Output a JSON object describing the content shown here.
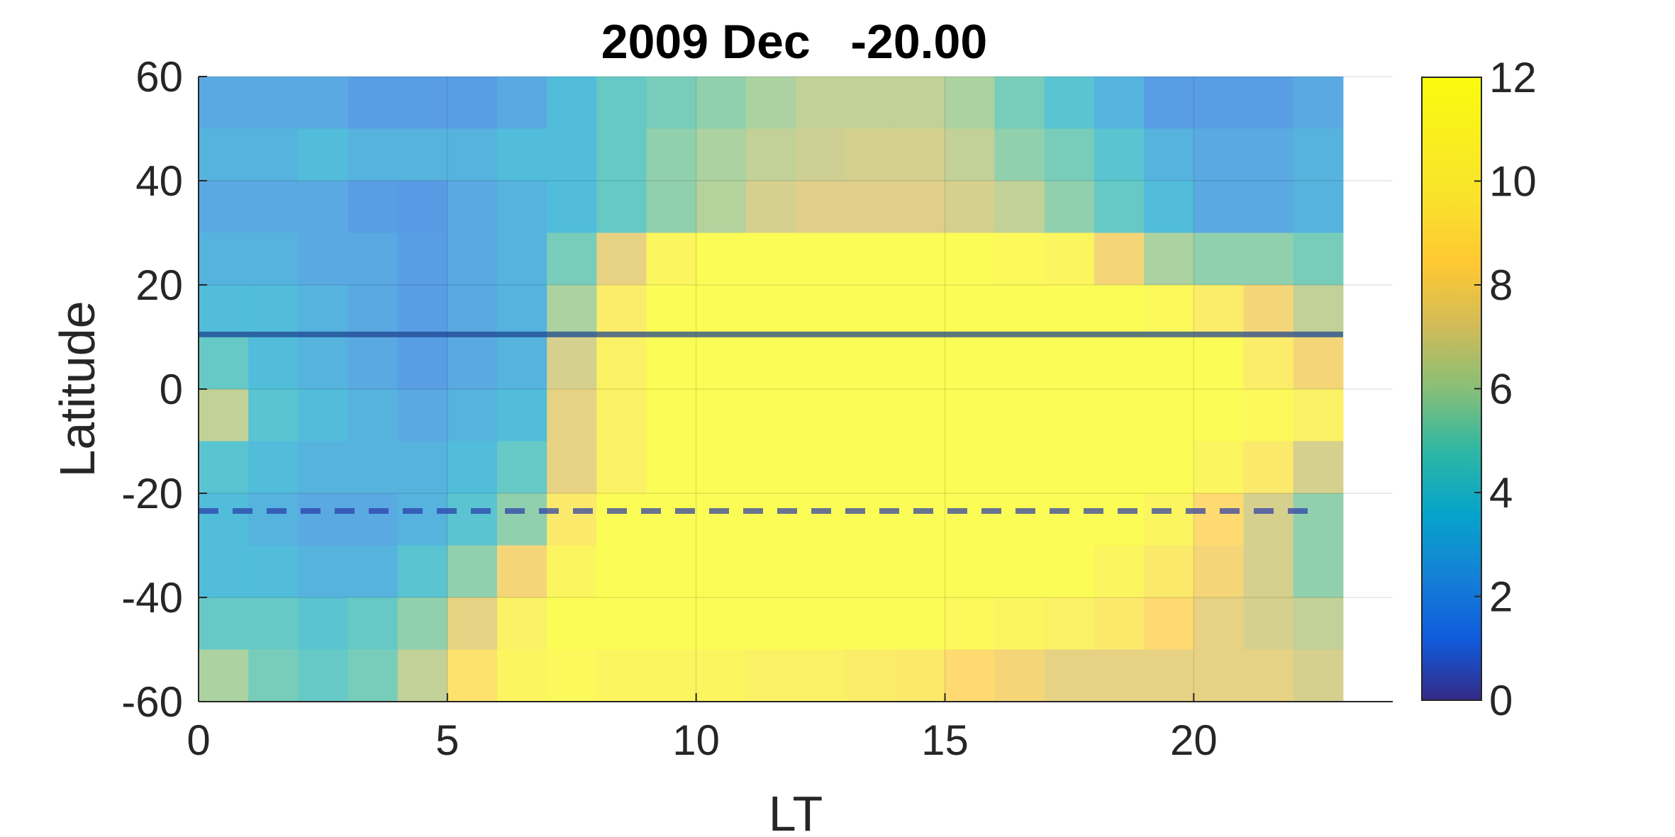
{
  "chart_data": {
    "type": "heatmap",
    "title": "2009 Dec   -20.00",
    "xlabel": "LT",
    "ylabel": "Latitude",
    "xlim": [
      0,
      24
    ],
    "ylim": [
      -60,
      60
    ],
    "x_cells": [
      0,
      23
    ],
    "x_ticks": [
      "0",
      "5",
      "10",
      "15",
      "20"
    ],
    "x_tick_values": [
      0,
      5,
      10,
      15,
      20
    ],
    "y_ticks": [
      "60",
      "40",
      "20",
      "0",
      "-20",
      "-40",
      "-60"
    ],
    "y_tick_values": [
      60,
      40,
      20,
      0,
      -20,
      -40,
      -60
    ],
    "colorbar": {
      "limits": [
        0,
        12
      ],
      "ticks": [
        "12",
        "10",
        "8",
        "6",
        "4",
        "2",
        "0"
      ],
      "tick_values": [
        12,
        10,
        8,
        6,
        4,
        2,
        0
      ],
      "colormap": "parula"
    },
    "grid": true,
    "reference_lines": [
      {
        "latitude": 10.5,
        "style": "solid",
        "color": "#1b3f8c"
      },
      {
        "latitude": -23.4,
        "style": "dashed",
        "color": "#2a3aa8"
      }
    ],
    "lt_bins": [
      0,
      1,
      2,
      3,
      4,
      5,
      6,
      7,
      8,
      9,
      10,
      11,
      12,
      13,
      14,
      15,
      16,
      17,
      18,
      19,
      20,
      21,
      22
    ],
    "lat_bins": [
      55,
      45,
      35,
      25,
      15,
      5,
      -5,
      -15,
      -25,
      -35,
      -45,
      -55
    ],
    "values": [
      [
        2.5,
        2.5,
        2.5,
        2.0,
        2.0,
        2.0,
        2.5,
        3.5,
        4.5,
        5.0,
        5.5,
        6.0,
        6.5,
        6.5,
        6.5,
        6.0,
        5.0,
        4.0,
        3.0,
        2.0,
        2.0,
        2.0,
        2.5
      ],
      [
        3.0,
        3.0,
        3.5,
        3.0,
        3.0,
        3.0,
        3.5,
        3.5,
        4.5,
        5.5,
        6.0,
        6.5,
        6.8,
        7.0,
        7.0,
        6.5,
        5.5,
        5.0,
        4.0,
        3.0,
        2.5,
        2.5,
        3.0
      ],
      [
        2.5,
        2.5,
        2.5,
        2.0,
        1.8,
        2.5,
        3.0,
        3.5,
        4.5,
        5.5,
        6.2,
        7.0,
        7.2,
        7.2,
        7.2,
        7.0,
        6.5,
        5.5,
        4.5,
        3.5,
        2.5,
        2.5,
        3.0
      ],
      [
        3.0,
        3.0,
        2.5,
        2.5,
        2.0,
        2.5,
        3.0,
        5.0,
        7.5,
        11.0,
        12.0,
        12.0,
        12.0,
        12.0,
        12.0,
        12.0,
        11.5,
        11.0,
        8.0,
        6.0,
        5.5,
        5.5,
        5.0
      ],
      [
        3.5,
        3.5,
        3.0,
        2.5,
        2.0,
        2.5,
        3.0,
        6.0,
        10.0,
        12.0,
        12.0,
        12.0,
        12.0,
        12.0,
        12.0,
        12.0,
        12.0,
        12.0,
        12.0,
        11.5,
        10.0,
        8.0,
        6.5
      ],
      [
        4.5,
        3.5,
        3.0,
        2.5,
        2.0,
        2.5,
        3.0,
        7.0,
        10.5,
        12.0,
        12.0,
        12.0,
        12.0,
        12.0,
        12.0,
        12.0,
        12.0,
        12.0,
        12.0,
        12.0,
        12.0,
        10.0,
        8.0
      ],
      [
        6.5,
        4.0,
        3.5,
        3.0,
        2.5,
        3.0,
        3.5,
        7.5,
        10.5,
        12.0,
        12.0,
        12.0,
        12.0,
        12.0,
        12.0,
        12.0,
        12.0,
        12.0,
        12.0,
        12.0,
        12.0,
        11.5,
        10.5
      ],
      [
        4.0,
        3.5,
        3.0,
        3.0,
        3.0,
        3.5,
        4.5,
        7.5,
        10.5,
        12.0,
        12.0,
        12.0,
        12.0,
        12.0,
        12.0,
        12.0,
        12.0,
        12.0,
        12.0,
        12.0,
        11.0,
        9.5,
        7.0
      ],
      [
        3.5,
        3.0,
        2.5,
        2.5,
        3.0,
        4.0,
        5.5,
        9.5,
        12.0,
        12.0,
        12.0,
        12.0,
        12.0,
        12.0,
        12.0,
        12.0,
        12.0,
        12.0,
        12.0,
        11.0,
        8.5,
        7.0,
        5.5
      ],
      [
        3.5,
        3.5,
        3.0,
        3.0,
        4.0,
        5.5,
        8.0,
        11.0,
        12.0,
        12.0,
        12.0,
        12.0,
        12.0,
        12.0,
        12.0,
        12.0,
        12.0,
        12.0,
        11.0,
        9.5,
        8.0,
        7.0,
        5.5
      ],
      [
        4.5,
        4.5,
        4.0,
        4.5,
        5.5,
        7.5,
        10.5,
        12.0,
        12.0,
        12.0,
        12.0,
        12.0,
        12.0,
        12.0,
        12.0,
        11.5,
        11.0,
        10.5,
        9.5,
        8.5,
        7.5,
        7.0,
        6.5
      ],
      [
        6.0,
        5.0,
        4.5,
        5.0,
        6.5,
        9.0,
        11.0,
        11.5,
        11.0,
        11.0,
        11.0,
        10.5,
        10.5,
        10.0,
        9.5,
        8.5,
        8.0,
        7.5,
        7.5,
        7.5,
        7.5,
        7.5,
        7.0
      ]
    ]
  }
}
